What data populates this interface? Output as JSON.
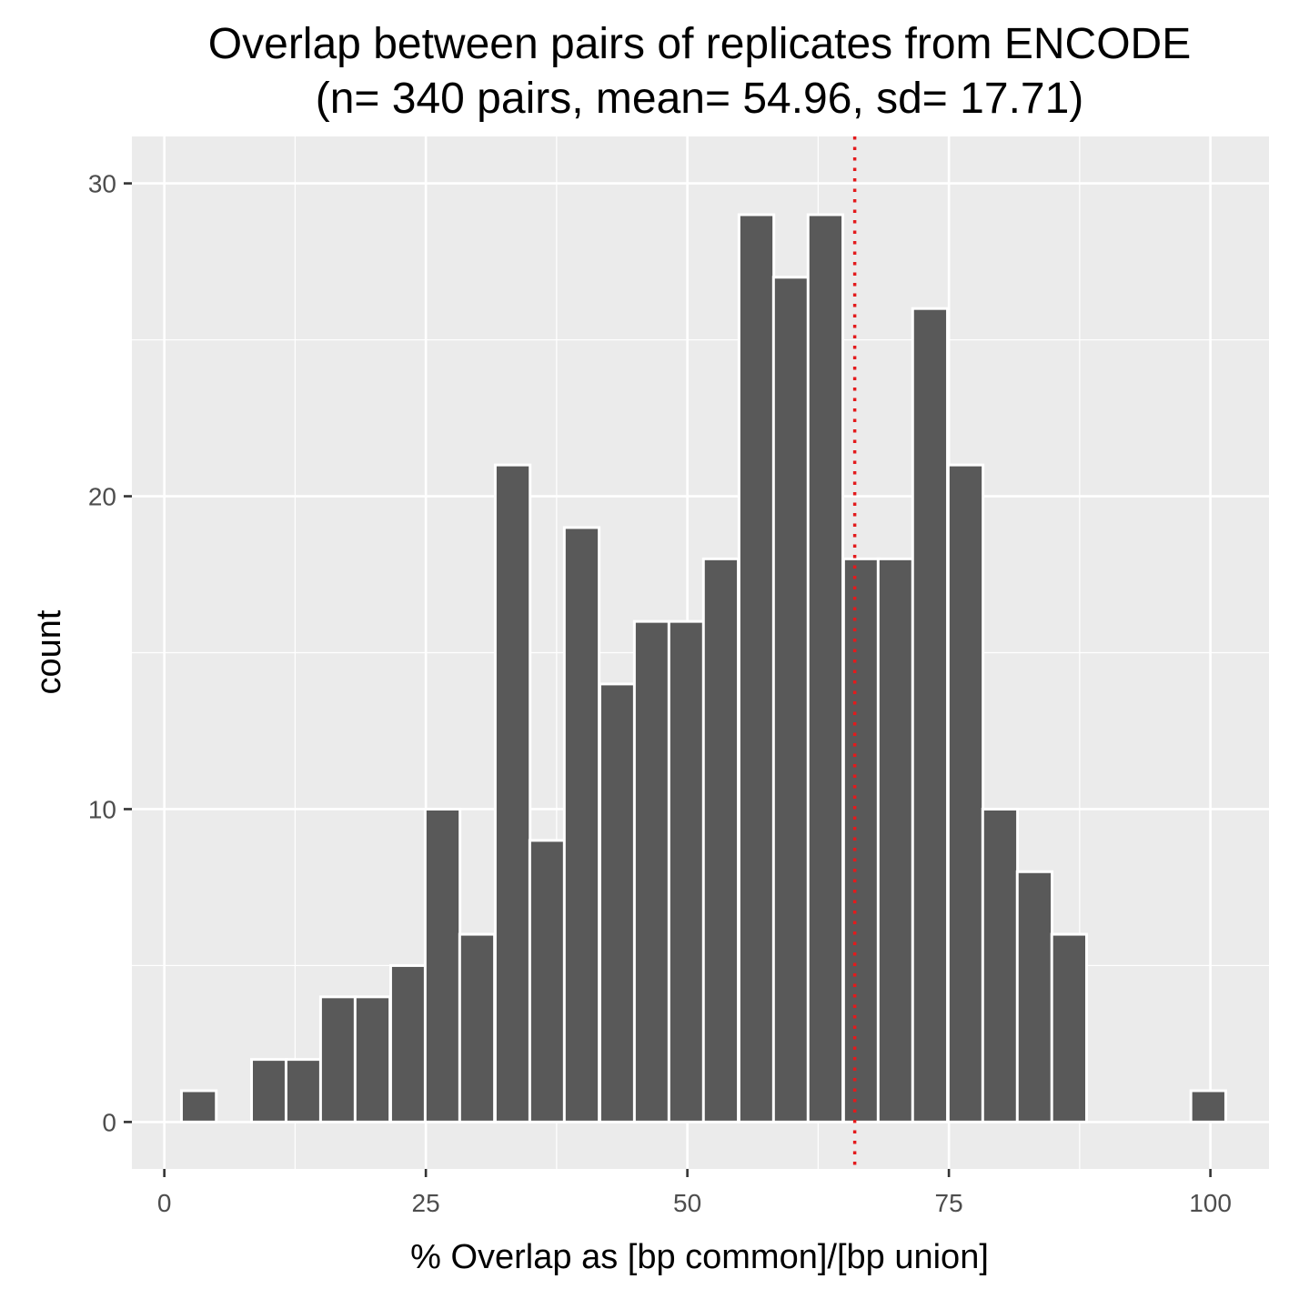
{
  "chart_data": {
    "type": "bar",
    "title": "Overlap between pairs of replicates from ENCODE",
    "subtitle": "(n= 340 pairs, mean= 54.96, sd= 17.71)",
    "xlabel": "% Overlap as [bp common]/[bp union]",
    "ylabel": "count",
    "xlim": [
      -3.1,
      105.6
    ],
    "ylim": [
      -1.5,
      31.5
    ],
    "x_ticks": [
      0,
      25,
      50,
      75,
      100
    ],
    "x_tick_labels": [
      "0",
      "25",
      "50",
      "75",
      "100"
    ],
    "y_ticks": [
      0,
      10,
      20,
      30
    ],
    "y_tick_labels": [
      "0",
      "10",
      "20",
      "30"
    ],
    "bin_width": 3.33,
    "bins": [
      {
        "x": 3.3,
        "count": 1
      },
      {
        "x": 10.0,
        "count": 2
      },
      {
        "x": 13.3,
        "count": 2
      },
      {
        "x": 16.6,
        "count": 4
      },
      {
        "x": 19.9,
        "count": 4
      },
      {
        "x": 23.3,
        "count": 5
      },
      {
        "x": 26.6,
        "count": 10
      },
      {
        "x": 29.9,
        "count": 6
      },
      {
        "x": 33.3,
        "count": 21
      },
      {
        "x": 36.6,
        "count": 9
      },
      {
        "x": 39.9,
        "count": 19
      },
      {
        "x": 43.3,
        "count": 14
      },
      {
        "x": 46.6,
        "count": 16
      },
      {
        "x": 49.9,
        "count": 16
      },
      {
        "x": 53.2,
        "count": 18
      },
      {
        "x": 56.6,
        "count": 29
      },
      {
        "x": 59.9,
        "count": 27
      },
      {
        "x": 63.2,
        "count": 29
      },
      {
        "x": 66.6,
        "count": 18
      },
      {
        "x": 69.9,
        "count": 18
      },
      {
        "x": 73.2,
        "count": 26
      },
      {
        "x": 76.6,
        "count": 21
      },
      {
        "x": 79.9,
        "count": 10
      },
      {
        "x": 83.2,
        "count": 8
      },
      {
        "x": 86.5,
        "count": 6
      },
      {
        "x": 99.8,
        "count": 1
      }
    ],
    "reference_line": {
      "x": 66.0,
      "color": "#e31a1c",
      "style": "dotted"
    },
    "grid": true,
    "colors": {
      "panel": "#ebebeb",
      "bar_fill": "#595959",
      "bar_outline": "#ffffff",
      "grid": "#ffffff",
      "ticks": "#333333"
    }
  }
}
